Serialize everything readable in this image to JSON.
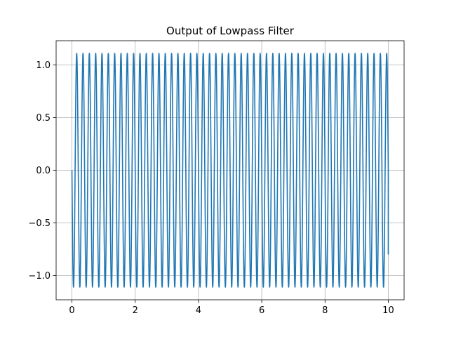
{
  "chart_data": {
    "type": "line",
    "title": "Output of Lowpass Filter",
    "xlabel": "",
    "ylabel": "",
    "xlim": [
      -0.5,
      10.5
    ],
    "ylim": [
      -1.23,
      1.23
    ],
    "x_ticks": [
      0,
      2,
      4,
      6,
      8,
      10
    ],
    "x_tick_labels": [
      "0",
      "2",
      "4",
      "6",
      "8",
      "10"
    ],
    "y_ticks": [
      -1.0,
      -0.5,
      0.0,
      0.5,
      1.0
    ],
    "y_tick_labels": [
      "−1.0",
      "−0.5",
      "0.0",
      "0.5",
      "1.0"
    ],
    "grid": true,
    "legend": "none",
    "series": [
      {
        "signal": "sinusoid",
        "frequency_hz": 5,
        "amplitude": 1.11,
        "x_start": 0,
        "x_end": 10,
        "start_value": 0.0,
        "end_value": -0.8,
        "color": "#1f77b4"
      }
    ]
  }
}
